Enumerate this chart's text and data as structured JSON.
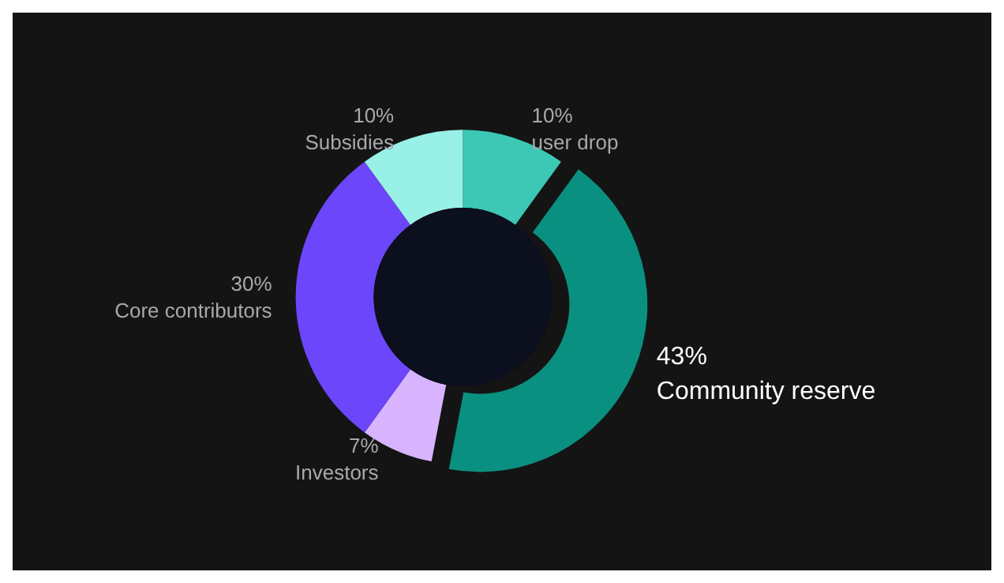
{
  "chart_data": {
    "type": "donut",
    "categories": [
      "user drop",
      "Community reserve",
      "Investors",
      "Core contributors",
      "Subsidies"
    ],
    "values": [
      10,
      43,
      7,
      30,
      10
    ],
    "value_labels": [
      "10%",
      "43%",
      "7%",
      "30%",
      "10%"
    ],
    "colors": [
      "#3cc8b4",
      "#0a9080",
      "#d8b4fe",
      "#6b46fa",
      "#99f0e6"
    ],
    "legend": false
  }
}
